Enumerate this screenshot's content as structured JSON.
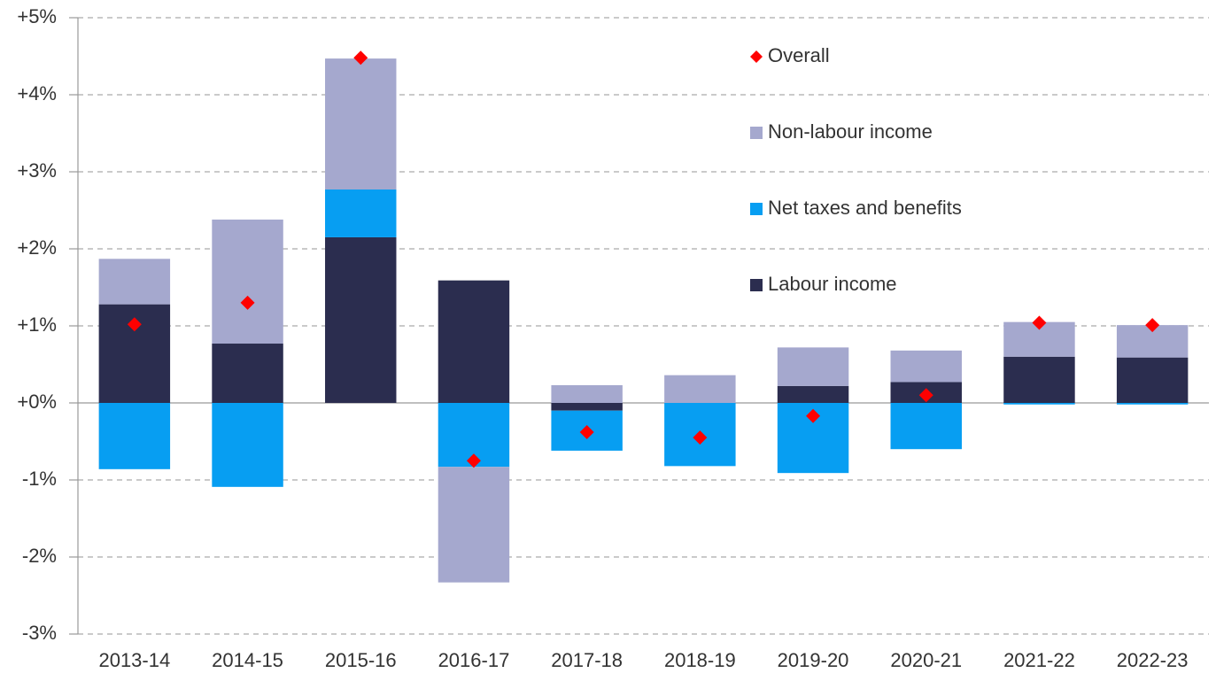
{
  "chart_data": {
    "type": "bar",
    "stacked": true,
    "categories": [
      "2013-14",
      "2014-15",
      "2015-16",
      "2016-17",
      "2017-18",
      "2018-19",
      "2019-20",
      "2020-21",
      "2021-22",
      "2022-23"
    ],
    "series": [
      {
        "name": "Labour income",
        "color": "#2b2d4f",
        "legend_color": "#2b2d4f",
        "values": [
          1.28,
          0.77,
          2.15,
          1.59,
          -0.1,
          0.0,
          0.22,
          0.27,
          0.6,
          0.59
        ]
      },
      {
        "name": "Net taxes and benefits",
        "color": "#079ef2",
        "legend_color": "#1f6f9f",
        "values": [
          -0.86,
          -1.09,
          0.62,
          -0.83,
          -0.52,
          -0.82,
          -0.91,
          -0.6,
          -0.02,
          -0.02
        ]
      },
      {
        "name": "Non-labour income",
        "color": "#a5a8ce",
        "legend_color": "#9c9fc6",
        "values": [
          0.59,
          1.61,
          1.7,
          -1.5,
          0.23,
          0.36,
          0.5,
          0.41,
          0.45,
          0.42
        ]
      },
      {
        "name": "Overall",
        "color": "#ff0000",
        "legend_color": "#ff0000",
        "marker": "diamond",
        "values": [
          1.02,
          1.3,
          4.48,
          -0.75,
          -0.38,
          -0.45,
          -0.17,
          0.1,
          1.04,
          1.01
        ]
      }
    ],
    "ylim": [
      -3,
      5
    ],
    "yticks": [
      {
        "value": -3,
        "label": "-3%"
      },
      {
        "value": -2,
        "label": "-2%"
      },
      {
        "value": -1,
        "label": "-1%"
      },
      {
        "value": 0,
        "label": "+0%"
      },
      {
        "value": 1,
        "label": "+1%"
      },
      {
        "value": 2,
        "label": "+2%"
      },
      {
        "value": 3,
        "label": "+3%"
      },
      {
        "value": 4,
        "label": "+4%"
      },
      {
        "value": 5,
        "label": "+5%"
      }
    ],
    "grid": true,
    "legend": "top-right"
  }
}
